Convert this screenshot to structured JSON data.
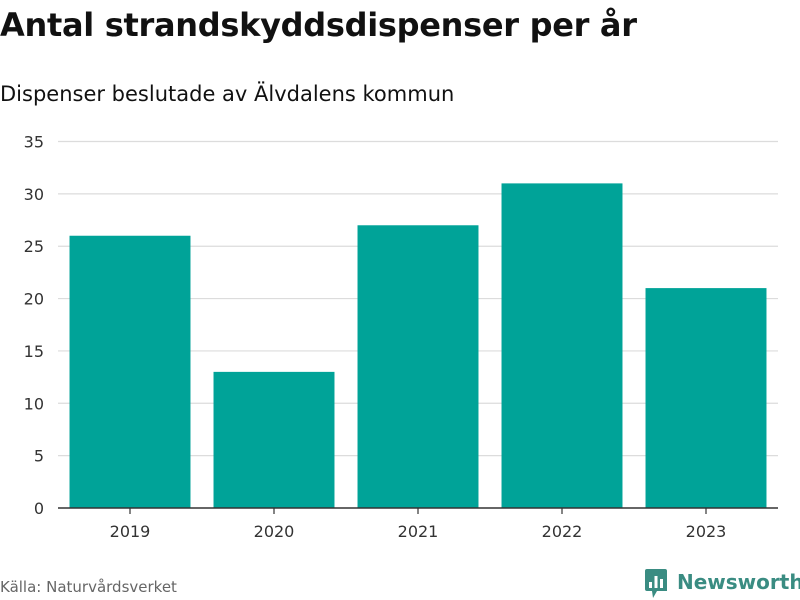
{
  "header": {
    "title": "Antal strandskyddsdispenser per år",
    "subtitle": "Dispenser beslutade av Älvdalens kommun"
  },
  "footer": {
    "source": "Källa: Naturvårdsverket",
    "brand": "Newsworthy",
    "brand_icon": "bar-chart-icon"
  },
  "colors": {
    "bar": "#00a398",
    "grid": "#dcdcdc",
    "axis": "#333333",
    "brand": "#3a8c82"
  },
  "chart_data": {
    "type": "bar",
    "title": "Antal strandskyddsdispenser per år",
    "subtitle": "Dispenser beslutade av Älvdalens kommun",
    "categories": [
      "2019",
      "2020",
      "2021",
      "2022",
      "2023"
    ],
    "values": [
      26,
      13,
      27,
      31,
      21
    ],
    "xlabel": "",
    "ylabel": "",
    "ylim": [
      0,
      35
    ],
    "yticks": [
      "0",
      "5",
      "10",
      "15",
      "20",
      "25",
      "30",
      "35"
    ],
    "grid": true,
    "legend": "none"
  }
}
